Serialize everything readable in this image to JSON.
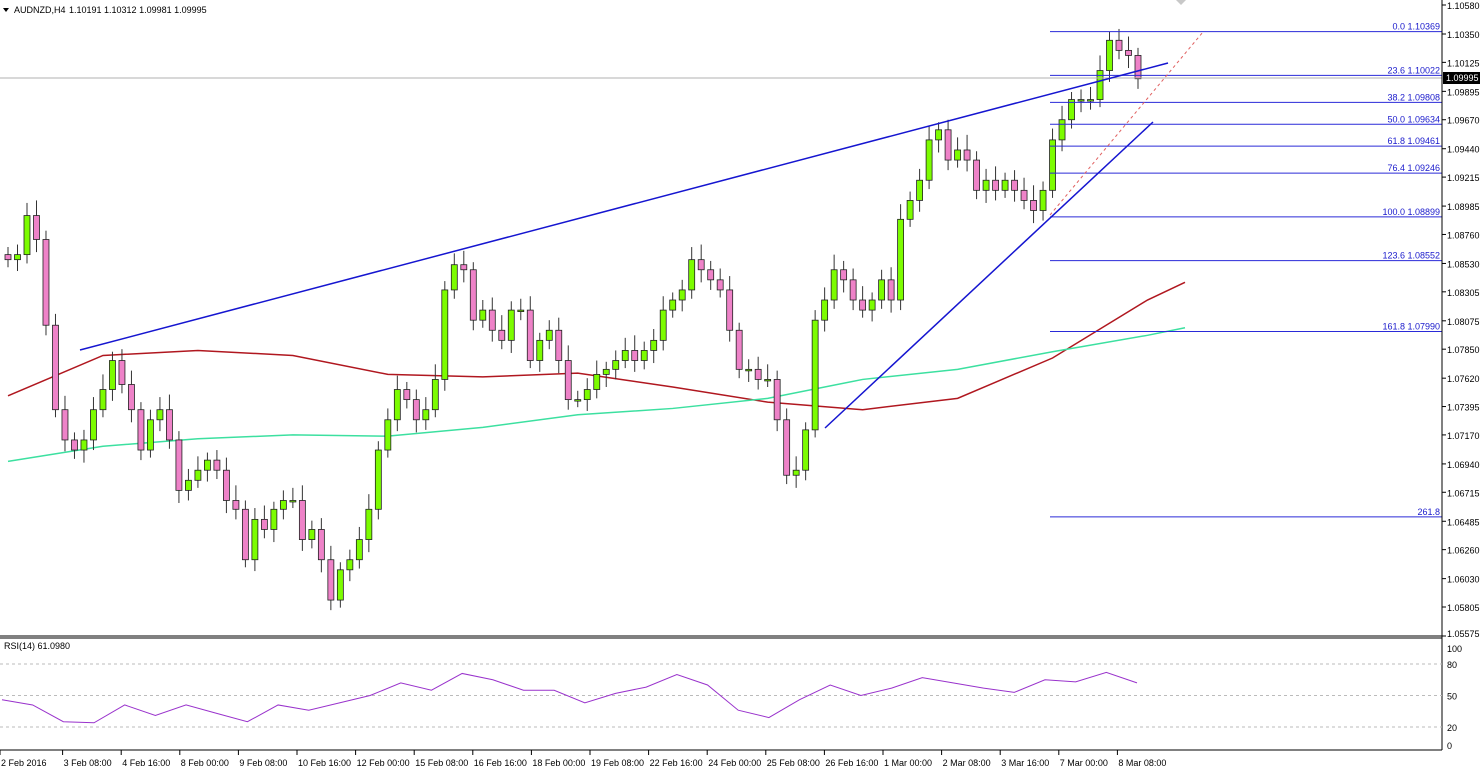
{
  "header": {
    "symbol": "AUDNZD,H4",
    "ohlc": "1.10191 1.10312 1.09981 1.09995"
  },
  "current_price": "1.09995",
  "rsi": {
    "label": "RSI(14) 61.0980",
    "levels": [
      "100",
      "80",
      "50",
      "20",
      "0"
    ]
  },
  "colors": {
    "bull": "#7cfc00",
    "bear": "#ee82c8",
    "trendline": "#1515d0",
    "fib": "#2a2ad8",
    "ma_fast": "#b0171f",
    "ma_slow": "#3ce0a0",
    "rsi": "#9932cc",
    "projection": "#e06060"
  },
  "chart_data": {
    "type": "candlestick",
    "title": "AUDNZD,H4",
    "ylim": [
      1.05575,
      1.1058
    ],
    "y_ticks": [
      "1.10580",
      "1.10350",
      "1.10125",
      "1.09895",
      "1.09670",
      "1.09440",
      "1.09215",
      "1.08985",
      "1.08760",
      "1.08530",
      "1.08305",
      "1.08075",
      "1.07850",
      "1.07620",
      "1.07395",
      "1.07170",
      "1.06940",
      "1.06715",
      "1.06485",
      "1.06260",
      "1.06030",
      "1.05805",
      "1.05575"
    ],
    "x_ticks": [
      "2 Feb 2016",
      "3 Feb 08:00",
      "4 Feb 16:00",
      "8 Feb 00:00",
      "9 Feb 08:00",
      "10 Feb 16:00",
      "12 Feb 00:00",
      "15 Feb 08:00",
      "16 Feb 16:00",
      "18 Feb 00:00",
      "19 Feb 08:00",
      "22 Feb 16:00",
      "24 Feb 00:00",
      "25 Feb 08:00",
      "26 Feb 16:00",
      "1 Mar 00:00",
      "2 Mar 08:00",
      "3 Mar 16:00",
      "7 Mar 00:00",
      "8 Mar 08:00"
    ],
    "closes": [
      1.0856,
      1.086,
      1.0891,
      1.0872,
      1.0804,
      1.0737,
      1.0713,
      1.0705,
      1.0713,
      1.0737,
      1.0753,
      1.0776,
      1.0757,
      1.0737,
      1.0705,
      1.0729,
      1.0737,
      1.0713,
      1.0673,
      1.0681,
      1.0689,
      1.0697,
      1.0689,
      1.0665,
      1.0658,
      1.0618,
      1.065,
      1.0642,
      1.0658,
      1.0665,
      1.0665,
      1.0634,
      1.0642,
      1.0618,
      1.0586,
      1.061,
      1.0618,
      1.0634,
      1.0658,
      1.0705,
      1.0729,
      1.0753,
      1.0745,
      1.0729,
      1.0737,
      1.0761,
      1.0832,
      1.0852,
      1.0848,
      1.0808,
      1.0816,
      1.08,
      1.0792,
      1.0816,
      1.0816,
      1.0776,
      1.0792,
      1.08,
      1.0776,
      1.0745,
      1.0745,
      1.0753,
      1.0765,
      1.0769,
      1.0776,
      1.0784,
      1.0776,
      1.0784,
      1.0792,
      1.0816,
      1.0824,
      1.0832,
      1.0856,
      1.0848,
      1.084,
      1.0832,
      1.08,
      1.0769,
      1.0769,
      1.0761,
      1.0761,
      1.0729,
      1.0685,
      1.0689,
      1.0721,
      1.0808,
      1.0824,
      1.0848,
      1.084,
      1.0824,
      1.0816,
      1.0824,
      1.084,
      1.0824,
      1.0888,
      1.0903,
      1.0919,
      1.0951,
      1.0959,
      1.0935,
      1.0943,
      1.0935,
      1.0911,
      1.0919,
      1.0911,
      1.0919,
      1.0911,
      1.0903,
      1.0895,
      1.0911,
      1.0951,
      1.0967,
      1.0983,
      1.0983,
      1.0983,
      1.1006,
      1.103,
      1.1022,
      1.1018,
      1.09995
    ],
    "ma_fast": [
      1.0748,
      1.078,
      1.0784,
      1.078,
      1.0765,
      1.0763,
      1.0766,
      1.0755,
      1.0743,
      1.0737,
      1.0746,
      1.0778,
      1.0824,
      1.0838
    ],
    "ma_slow": [
      1.0696,
      1.0708,
      1.0714,
      1.0717,
      1.0716,
      1.0723,
      1.0733,
      1.0738,
      1.0746,
      1.0761,
      1.0769,
      1.0783,
      1.0796,
      1.0802
    ],
    "rsi": [
      46,
      41,
      25,
      24,
      41,
      31,
      41,
      33,
      25,
      41,
      36,
      43,
      50,
      62,
      55,
      71,
      65,
      55,
      55,
      43,
      52,
      58,
      70,
      60,
      36,
      29,
      46,
      60,
      50,
      57,
      67,
      62,
      57,
      53,
      65,
      63,
      72,
      62
    ],
    "fibonacci": [
      {
        "level": "0.0",
        "price": "1.10369"
      },
      {
        "level": "23.6",
        "price": "1.10022"
      },
      {
        "level": "38.2",
        "price": "1.09808"
      },
      {
        "level": "50.0",
        "price": "1.09634"
      },
      {
        "level": "61.8",
        "price": "1.09461"
      },
      {
        "level": "76.4",
        "price": "1.09246"
      },
      {
        "level": "100.0",
        "price": "1.08899"
      },
      {
        "level": "123.6",
        "price": "1.08552"
      },
      {
        "level": "161.8",
        "price": "1.07990"
      },
      {
        "level": "261.8",
        "price": ""
      }
    ],
    "fib_261_price": 1.0652
  }
}
